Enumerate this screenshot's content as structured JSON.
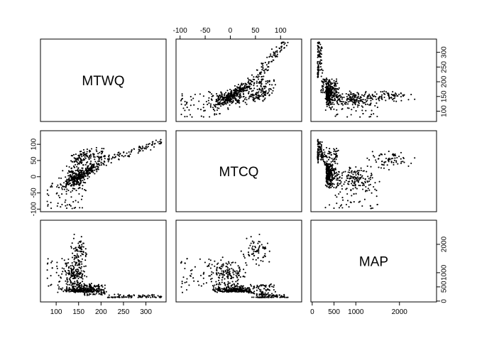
{
  "chart_data": {
    "type": "scatter",
    "variables": [
      "MTWQ",
      "MTCQ",
      "MAP"
    ],
    "ranges": {
      "MTWQ": [
        65,
        345
      ],
      "MTCQ": [
        -108,
        142
      ],
      "MAP": [
        -30,
        2850
      ]
    },
    "ticks": {
      "MTWQ": {
        "values": [
          100,
          150,
          200,
          250,
          300
        ],
        "labels": [
          "100",
          "150",
          "200",
          "250",
          "300"
        ]
      },
      "MTCQ": {
        "values": [
          -100,
          -50,
          0,
          50,
          100
        ],
        "labels": [
          "-100",
          "-50",
          "0",
          "50",
          "100"
        ]
      },
      "MAP": {
        "values": [
          0,
          500,
          1000,
          2000
        ],
        "labels": [
          "0",
          "500",
          "1000",
          "2000"
        ]
      }
    },
    "axis_placement": {
      "top": "MTCQ",
      "right_row1": "MTWQ",
      "left": "MTCQ",
      "bottom": "MTWQ",
      "right_row3": "MAP"
    },
    "grid": false,
    "n_points": 700
  }
}
